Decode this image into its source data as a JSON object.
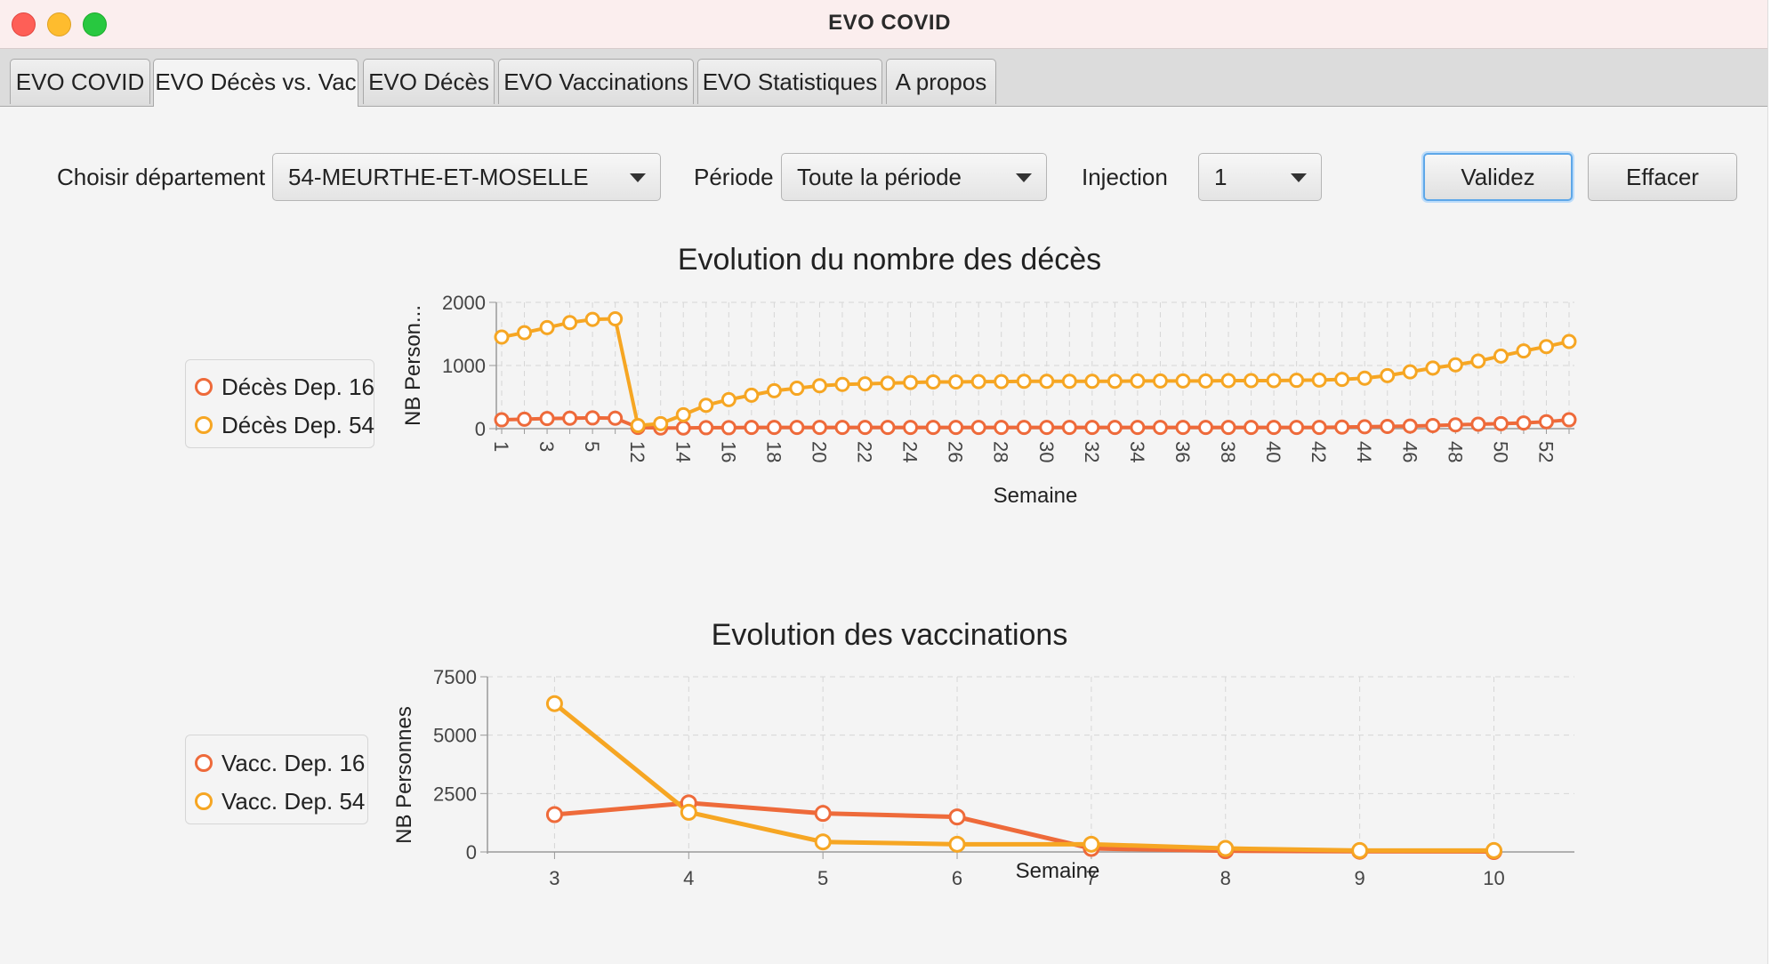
{
  "window": {
    "title": "EVO COVID"
  },
  "tabs": [
    {
      "label": "EVO COVID",
      "active": false
    },
    {
      "label": "EVO Décès vs. Vac",
      "active": true
    },
    {
      "label": "EVO Décès",
      "active": false
    },
    {
      "label": "EVO Vaccinations",
      "active": false
    },
    {
      "label": "EVO Statistiques",
      "active": false
    },
    {
      "label": "A propos",
      "active": false
    }
  ],
  "form": {
    "departement_label": "Choisir département",
    "departement_value": "54-MEURTHE-ET-MOSELLE",
    "periode_label": "Période",
    "periode_value": "Toute la période",
    "injection_label": "Injection",
    "injection_value": "1",
    "validate_label": "Validez",
    "clear_label": "Effacer"
  },
  "colors": {
    "series1": "#ee6a3a",
    "series2": "#f6a623"
  },
  "chart_data": [
    {
      "type": "line",
      "title": "Evolution du nombre des décès",
      "xlabel": "Semaine",
      "ylabel": "NB Person...",
      "ylim": [
        0,
        2000
      ],
      "yticks": [
        0,
        1000,
        2000
      ],
      "grid": true,
      "legend_position": "left",
      "x": [
        1,
        2,
        3,
        4,
        5,
        6,
        12,
        13,
        14,
        15,
        16,
        17,
        18,
        19,
        20,
        21,
        22,
        23,
        24,
        25,
        26,
        27,
        28,
        29,
        30,
        31,
        32,
        33,
        34,
        35,
        36,
        37,
        38,
        39,
        40,
        41,
        42,
        43,
        44,
        45,
        46,
        47,
        48,
        49,
        50,
        51,
        52,
        53
      ],
      "xtick_labels": [
        "1",
        "3",
        "5",
        "12",
        "14",
        "16",
        "18",
        "20",
        "22",
        "24",
        "26",
        "28",
        "30",
        "32",
        "34",
        "36",
        "38",
        "40",
        "42",
        "44",
        "46",
        "48",
        "50",
        "52"
      ],
      "series": [
        {
          "name": "Décès Dep. 16",
          "values": [
            140,
            150,
            160,
            165,
            170,
            165,
            20,
            10,
            10,
            15,
            15,
            20,
            20,
            20,
            20,
            20,
            20,
            20,
            20,
            20,
            20,
            20,
            20,
            20,
            20,
            20,
            20,
            20,
            20,
            20,
            20,
            20,
            20,
            20,
            20,
            20,
            20,
            25,
            30,
            35,
            40,
            50,
            60,
            70,
            80,
            90,
            110,
            140
          ]
        },
        {
          "name": "Décès Dep. 54",
          "values": [
            1450,
            1520,
            1600,
            1680,
            1730,
            1740,
            50,
            80,
            220,
            370,
            460,
            530,
            600,
            640,
            680,
            700,
            710,
            720,
            730,
            740,
            740,
            745,
            745,
            750,
            750,
            750,
            750,
            750,
            755,
            755,
            755,
            755,
            760,
            760,
            760,
            765,
            770,
            780,
            800,
            840,
            900,
            960,
            1010,
            1070,
            1150,
            1230,
            1300,
            1380
          ]
        }
      ]
    },
    {
      "type": "line",
      "title": "Evolution des vaccinations",
      "xlabel": "Semaine",
      "ylabel": "NB Personnes",
      "ylim": [
        0,
        7500
      ],
      "yticks": [
        0,
        2500,
        5000,
        7500
      ],
      "xlim": [
        2.5,
        10.6
      ],
      "grid": true,
      "legend_position": "left",
      "x": [
        3,
        4,
        5,
        6,
        7,
        8,
        9,
        10
      ],
      "series": [
        {
          "name": "Vacc. Dep. 16",
          "values": [
            1600,
            2100,
            1650,
            1500,
            150,
            50,
            30,
            20
          ]
        },
        {
          "name": "Vacc. Dep. 54",
          "values": [
            6350,
            1700,
            430,
            330,
            330,
            150,
            60,
            60
          ]
        }
      ]
    }
  ]
}
